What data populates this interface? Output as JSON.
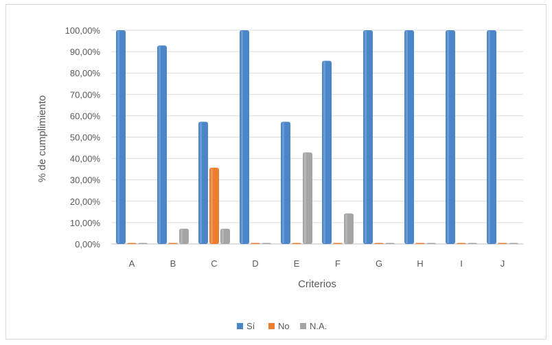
{
  "chart_data": {
    "type": "bar",
    "title": "",
    "xlabel": "Criterios",
    "ylabel": "% de cumplimiento",
    "categories": [
      "A",
      "B",
      "C",
      "D",
      "E",
      "F",
      "G",
      "H",
      "I",
      "J"
    ],
    "series": [
      {
        "name": "Sí",
        "color": "#4a86c8",
        "values": [
          100,
          92.86,
          57.14,
          100,
          57.14,
          85.71,
          100,
          100,
          100,
          100
        ]
      },
      {
        "name": "No",
        "color": "#ed7d31",
        "values": [
          0,
          0,
          35.71,
          0,
          0,
          0,
          0,
          0,
          0,
          0
        ]
      },
      {
        "name": "N.A.",
        "color": "#a5a5a5",
        "values": [
          0,
          7.14,
          7.14,
          0,
          42.86,
          14.29,
          0,
          0,
          0,
          0
        ]
      }
    ],
    "ylim": [
      0,
      100
    ],
    "yticks": [
      "0,00%",
      "10,00%",
      "20,00%",
      "30,00%",
      "40,00%",
      "50,00%",
      "60,00%",
      "70,00%",
      "80,00%",
      "90,00%",
      "100,00%"
    ],
    "grid": true,
    "legend": "bottom"
  }
}
